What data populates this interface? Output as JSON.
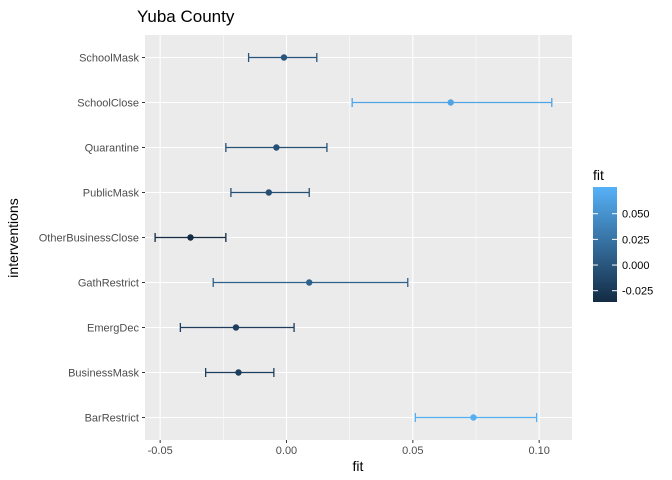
{
  "chart_data": {
    "type": "errorbar",
    "title": "Yuba County",
    "xlabel": "fit",
    "ylabel": "interventions",
    "xlim": [
      -0.056,
      0.113
    ],
    "x_ticks": [
      -0.05,
      0.0,
      0.05,
      0.1
    ],
    "x_tick_labels": [
      "-0.05",
      "0.00",
      "0.05",
      "0.10"
    ],
    "grid": true,
    "categories": [
      "SchoolMask",
      "SchoolClose",
      "Quarantine",
      "PublicMask",
      "OtherBusinessClose",
      "GathRestrict",
      "EmergDec",
      "BusinessMask",
      "BarRestrict"
    ],
    "fit": [
      -0.001,
      0.065,
      -0.004,
      -0.007,
      -0.038,
      0.009,
      -0.02,
      -0.019,
      0.074
    ],
    "lower": [
      -0.015,
      0.026,
      -0.024,
      -0.022,
      -0.052,
      -0.029,
      -0.042,
      -0.032,
      0.051
    ],
    "upper": [
      0.012,
      0.105,
      0.016,
      0.009,
      -0.024,
      0.048,
      0.003,
      -0.005,
      0.099
    ],
    "legend": {
      "title": "fit",
      "position": "right",
      "range": [
        -0.036,
        0.076
      ],
      "ticks": [
        0.05,
        0.025,
        0.0,
        -0.025
      ],
      "tick_labels": [
        "0.050",
        "0.025",
        "0.000",
        "-0.025"
      ],
      "color_low": "#132B43",
      "color_high": "#56B1F7"
    },
    "panel_color": "#EBEBEB",
    "grid_color": "#FFFFFF"
  }
}
